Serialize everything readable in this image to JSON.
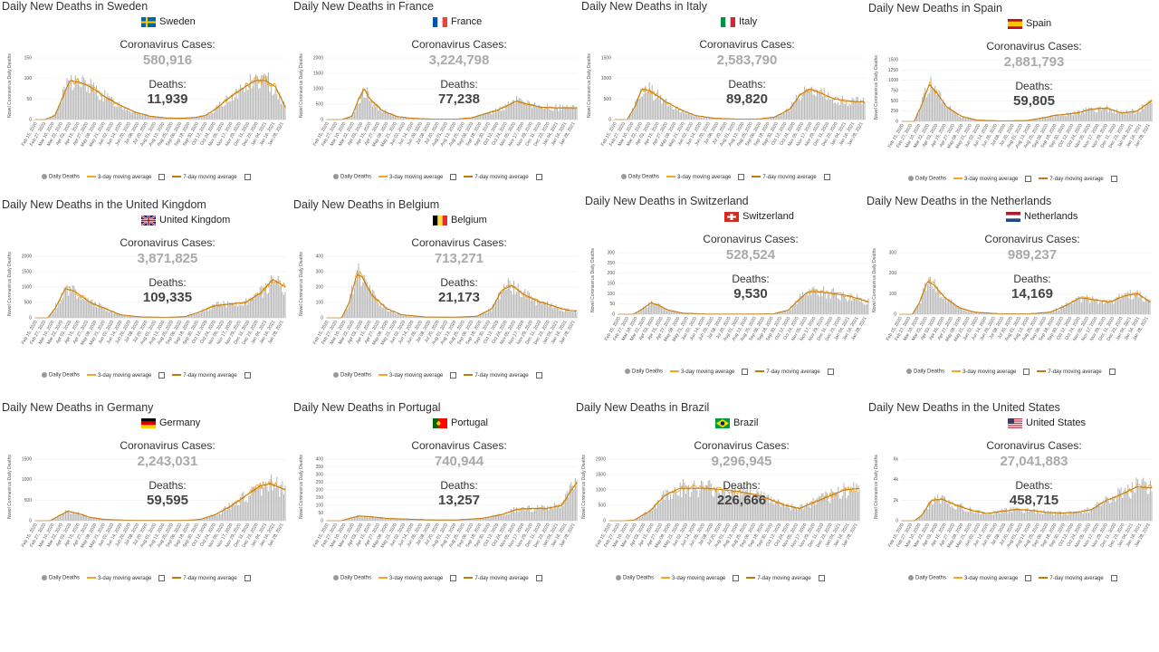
{
  "legend": {
    "daily": "Daily Deaths",
    "ma3": "3-day moving average",
    "ma7": "7-day moving average"
  },
  "axis_ylabel": "Novel Coronavirus Daily Deaths",
  "x_ticks": [
    "Feb 15, 2020",
    "Feb 27, 2020",
    "Mar 10, 2020",
    "Mar 22, 2020",
    "Apr 03, 2020",
    "Apr 15, 2020",
    "Apr 27, 2020",
    "May 09, 2020",
    "May 21, 2020",
    "Jun 02, 2020",
    "Jun 14, 2020",
    "Jun 26, 2020",
    "Jul 08, 2020",
    "Jul 20, 2020",
    "Aug 01, 2020",
    "Aug 13, 2020",
    "Aug 25, 2020",
    "Sep 06, 2020",
    "Sep 18, 2020",
    "Sep 30, 2020",
    "Oct 12, 2020",
    "Oct 24, 2020",
    "Nov 05, 2020",
    "Nov 17, 2020",
    "Nov 29, 2020",
    "Dec 11, 2020",
    "Dec 23, 2020",
    "Jan 04, 2021",
    "Jan 16, 2021",
    "Jan 28, 2021"
  ],
  "colors": {
    "bar": "#b8b8b8",
    "ma3": "#f5a623",
    "ma7": "#c07a10",
    "cases": "#aaaaaa"
  },
  "chart_data": [
    {
      "type": "bar",
      "title": "Daily New Deaths in Sweden",
      "country": "Sweden",
      "flag": "se",
      "cases_label": "Coronavirus Cases:",
      "cases": "580,916",
      "deaths_label": "Deaths:",
      "deaths": "11,939",
      "ylabel": "Novel Coronavirus Daily Deaths",
      "yticks": [
        0,
        50,
        100,
        150
      ],
      "ylim": [
        0,
        150
      ],
      "series_shape": [
        [
          0,
          0
        ],
        [
          0.04,
          0
        ],
        [
          0.08,
          10
        ],
        [
          0.12,
          70
        ],
        [
          0.14,
          95
        ],
        [
          0.18,
          90
        ],
        [
          0.22,
          80
        ],
        [
          0.28,
          55
        ],
        [
          0.34,
          35
        ],
        [
          0.4,
          18
        ],
        [
          0.46,
          8
        ],
        [
          0.52,
          4
        ],
        [
          0.58,
          3
        ],
        [
          0.64,
          5
        ],
        [
          0.68,
          10
        ],
        [
          0.72,
          25
        ],
        [
          0.78,
          55
        ],
        [
          0.84,
          80
        ],
        [
          0.88,
          95
        ],
        [
          0.92,
          95
        ],
        [
          0.96,
          80
        ],
        [
          1.0,
          30
        ]
      ]
    },
    {
      "type": "bar",
      "title": "Daily New Deaths in France",
      "country": "France",
      "flag": "fr",
      "cases_label": "Coronavirus Cases:",
      "cases": "3,224,798",
      "deaths_label": "Deaths:",
      "deaths": "77,238",
      "ylabel": "Novel Coronavirus Daily Deaths",
      "yticks": [
        0,
        500,
        1000,
        1500,
        2000
      ],
      "ylim": [
        0,
        2000
      ],
      "series_shape": [
        [
          0,
          0
        ],
        [
          0.06,
          0
        ],
        [
          0.1,
          100
        ],
        [
          0.13,
          700
        ],
        [
          0.15,
          1000
        ],
        [
          0.17,
          700
        ],
        [
          0.22,
          300
        ],
        [
          0.28,
          100
        ],
        [
          0.34,
          40
        ],
        [
          0.42,
          15
        ],
        [
          0.52,
          15
        ],
        [
          0.58,
          60
        ],
        [
          0.64,
          200
        ],
        [
          0.68,
          300
        ],
        [
          0.72,
          450
        ],
        [
          0.76,
          600
        ],
        [
          0.8,
          500
        ],
        [
          0.86,
          400
        ],
        [
          0.92,
          380
        ],
        [
          1.0,
          380
        ]
      ]
    },
    {
      "type": "bar",
      "title": "Daily New Deaths in Italy",
      "country": "Italy",
      "flag": "it",
      "cases_label": "Coronavirus Cases:",
      "cases": "2,583,790",
      "deaths_label": "Deaths:",
      "deaths": "89,820",
      "ylabel": "Novel Coronavirus Daily Deaths",
      "yticks": [
        0,
        500,
        1000,
        1500
      ],
      "ylim": [
        0,
        1500
      ],
      "series_shape": [
        [
          0,
          0
        ],
        [
          0.05,
          0
        ],
        [
          0.08,
          300
        ],
        [
          0.11,
          750
        ],
        [
          0.14,
          700
        ],
        [
          0.2,
          450
        ],
        [
          0.26,
          250
        ],
        [
          0.32,
          100
        ],
        [
          0.4,
          30
        ],
        [
          0.5,
          10
        ],
        [
          0.58,
          15
        ],
        [
          0.64,
          60
        ],
        [
          0.7,
          250
        ],
        [
          0.74,
          600
        ],
        [
          0.78,
          750
        ],
        [
          0.82,
          650
        ],
        [
          0.88,
          500
        ],
        [
          0.94,
          450
        ],
        [
          1.0,
          420
        ]
      ]
    },
    {
      "type": "bar",
      "title": "Daily New Deaths in Spain",
      "country": "Spain",
      "flag": "es",
      "cases_label": "Coronavirus Cases:",
      "cases": "2,881,793",
      "deaths_label": "Deaths:",
      "deaths": "59,805",
      "ylabel": "Novel Coronavirus Daily Deaths",
      "yticks": [
        0,
        250,
        500,
        750,
        1000,
        1250,
        1500
      ],
      "ylim": [
        0,
        1500
      ],
      "series_shape": [
        [
          0,
          0
        ],
        [
          0.05,
          0
        ],
        [
          0.08,
          400
        ],
        [
          0.11,
          900
        ],
        [
          0.14,
          700
        ],
        [
          0.18,
          350
        ],
        [
          0.24,
          120
        ],
        [
          0.3,
          30
        ],
        [
          0.4,
          10
        ],
        [
          0.5,
          20
        ],
        [
          0.56,
          80
        ],
        [
          0.62,
          150
        ],
        [
          0.7,
          200
        ],
        [
          0.76,
          300
        ],
        [
          0.82,
          320
        ],
        [
          0.88,
          200
        ],
        [
          0.94,
          250
        ],
        [
          1.0,
          500
        ]
      ]
    },
    {
      "type": "bar",
      "title": "Daily New Deaths in the United Kingdom",
      "country": "United Kingdom",
      "flag": "gb",
      "cases_label": "Coronavirus Cases:",
      "cases": "3,871,825",
      "deaths_label": "Deaths:",
      "deaths": "109,335",
      "ylabel": "Novel Coronavirus Daily Deaths",
      "yticks": [
        0,
        500,
        1000,
        1500,
        2000
      ],
      "ylim": [
        0,
        2000
      ],
      "series_shape": [
        [
          0,
          0
        ],
        [
          0.05,
          0
        ],
        [
          0.08,
          300
        ],
        [
          0.12,
          950
        ],
        [
          0.16,
          850
        ],
        [
          0.22,
          500
        ],
        [
          0.28,
          300
        ],
        [
          0.34,
          100
        ],
        [
          0.42,
          30
        ],
        [
          0.52,
          15
        ],
        [
          0.6,
          40
        ],
        [
          0.66,
          200
        ],
        [
          0.72,
          400
        ],
        [
          0.78,
          450
        ],
        [
          0.84,
          500
        ],
        [
          0.9,
          800
        ],
        [
          0.95,
          1250
        ],
        [
          1.0,
          1000
        ]
      ]
    },
    {
      "type": "bar",
      "title": "Daily New Deaths in Belgium",
      "country": "Belgium",
      "flag": "be",
      "cases_label": "Coronavirus Cases:",
      "cases": "713,271",
      "deaths_label": "Deaths:",
      "deaths": "21,173",
      "ylabel": "Novel Coronavirus Daily Deaths",
      "yticks": [
        0,
        100,
        200,
        300,
        400
      ],
      "ylim": [
        0,
        400
      ],
      "series_shape": [
        [
          0,
          0
        ],
        [
          0.06,
          0
        ],
        [
          0.09,
          100
        ],
        [
          0.12,
          280
        ],
        [
          0.14,
          270
        ],
        [
          0.18,
          150
        ],
        [
          0.24,
          60
        ],
        [
          0.3,
          20
        ],
        [
          0.4,
          5
        ],
        [
          0.52,
          5
        ],
        [
          0.6,
          10
        ],
        [
          0.66,
          60
        ],
        [
          0.7,
          180
        ],
        [
          0.74,
          210
        ],
        [
          0.78,
          160
        ],
        [
          0.84,
          110
        ],
        [
          0.9,
          80
        ],
        [
          0.96,
          50
        ],
        [
          1.0,
          45
        ]
      ]
    },
    {
      "type": "bar",
      "title": "Daily New Deaths in Switzerland",
      "country": "Switzerland",
      "flag": "ch",
      "cases_label": "Coronavirus Cases:",
      "cases": "528,524",
      "deaths_label": "Deaths:",
      "deaths": "9,530",
      "ylabel": "Novel Coronavirus Daily Deaths",
      "yticks": [
        0,
        50,
        100,
        150,
        200,
        250,
        300
      ],
      "ylim": [
        0,
        300
      ],
      "series_shape": [
        [
          0,
          0
        ],
        [
          0.06,
          0
        ],
        [
          0.09,
          20
        ],
        [
          0.13,
          55
        ],
        [
          0.16,
          45
        ],
        [
          0.2,
          20
        ],
        [
          0.26,
          5
        ],
        [
          0.36,
          1
        ],
        [
          0.5,
          1
        ],
        [
          0.62,
          2
        ],
        [
          0.68,
          20
        ],
        [
          0.72,
          70
        ],
        [
          0.76,
          110
        ],
        [
          0.8,
          110
        ],
        [
          0.86,
          100
        ],
        [
          0.92,
          90
        ],
        [
          1.0,
          60
        ]
      ]
    },
    {
      "type": "bar",
      "title": "Daily New Deaths in the Netherlands",
      "country": "Netherlands",
      "flag": "nl",
      "cases_label": "Coronavirus Cases:",
      "cases": "989,237",
      "deaths_label": "Deaths:",
      "deaths": "14,169",
      "ylabel": "Novel Coronavirus Daily Deaths",
      "yticks": [
        0,
        100,
        200,
        300
      ],
      "ylim": [
        0,
        300
      ],
      "series_shape": [
        [
          0,
          0
        ],
        [
          0.05,
          0
        ],
        [
          0.08,
          60
        ],
        [
          0.11,
          160
        ],
        [
          0.14,
          140
        ],
        [
          0.18,
          80
        ],
        [
          0.24,
          30
        ],
        [
          0.3,
          10
        ],
        [
          0.4,
          2
        ],
        [
          0.52,
          2
        ],
        [
          0.6,
          10
        ],
        [
          0.66,
          40
        ],
        [
          0.72,
          80
        ],
        [
          0.78,
          70
        ],
        [
          0.84,
          60
        ],
        [
          0.9,
          90
        ],
        [
          0.95,
          100
        ],
        [
          1.0,
          60
        ]
      ]
    },
    {
      "type": "bar",
      "title": "Daily New Deaths in Germany",
      "country": "Germany",
      "flag": "de",
      "cases_label": "Coronavirus Cases:",
      "cases": "2,243,031",
      "deaths_label": "Deaths:",
      "deaths": "59,595",
      "ylabel": "Novel Coronavirus Daily Deaths",
      "yticks": [
        0,
        500,
        1000,
        1500
      ],
      "ylim": [
        0,
        1500
      ],
      "series_shape": [
        [
          0,
          0
        ],
        [
          0.06,
          0
        ],
        [
          0.09,
          100
        ],
        [
          0.13,
          230
        ],
        [
          0.17,
          180
        ],
        [
          0.22,
          80
        ],
        [
          0.28,
          30
        ],
        [
          0.38,
          8
        ],
        [
          0.5,
          5
        ],
        [
          0.6,
          8
        ],
        [
          0.66,
          30
        ],
        [
          0.72,
          150
        ],
        [
          0.78,
          350
        ],
        [
          0.84,
          600
        ],
        [
          0.9,
          850
        ],
        [
          0.94,
          900
        ],
        [
          1.0,
          750
        ]
      ]
    },
    {
      "type": "bar",
      "title": "Daily New Deaths in Portugal",
      "country": "Portugal",
      "flag": "pt",
      "cases_label": "Coronavirus Cases:",
      "cases": "740,944",
      "deaths_label": "Deaths:",
      "deaths": "13,257",
      "ylabel": "Novel Coronavirus Daily Deaths",
      "yticks": [
        0,
        50,
        100,
        150,
        200,
        250,
        300,
        350,
        400
      ],
      "ylim": [
        0,
        400
      ],
      "series_shape": [
        [
          0,
          0
        ],
        [
          0.06,
          0
        ],
        [
          0.09,
          15
        ],
        [
          0.13,
          30
        ],
        [
          0.18,
          25
        ],
        [
          0.24,
          15
        ],
        [
          0.32,
          10
        ],
        [
          0.42,
          5
        ],
        [
          0.52,
          5
        ],
        [
          0.62,
          15
        ],
        [
          0.7,
          40
        ],
        [
          0.76,
          75
        ],
        [
          0.82,
          80
        ],
        [
          0.88,
          80
        ],
        [
          0.94,
          100
        ],
        [
          0.97,
          180
        ],
        [
          1.0,
          250
        ]
      ]
    },
    {
      "type": "bar",
      "title": "Daily New Deaths in Brazil",
      "country": "Brazil",
      "flag": "br",
      "cases_label": "Coronavirus Cases:",
      "cases": "9,296,945",
      "deaths_label": "Deaths:",
      "deaths": "226,666",
      "ylabel": "Novel Coronavirus Daily Deaths",
      "yticks": [
        0,
        500,
        1000,
        1500,
        2000
      ],
      "ylim": [
        0,
        2000
      ],
      "series_shape": [
        [
          0,
          0
        ],
        [
          0.06,
          0
        ],
        [
          0.1,
          20
        ],
        [
          0.16,
          300
        ],
        [
          0.22,
          800
        ],
        [
          0.28,
          1050
        ],
        [
          0.34,
          1050
        ],
        [
          0.4,
          1050
        ],
        [
          0.46,
          1000
        ],
        [
          0.52,
          950
        ],
        [
          0.58,
          850
        ],
        [
          0.64,
          700
        ],
        [
          0.7,
          500
        ],
        [
          0.76,
          400
        ],
        [
          0.82,
          600
        ],
        [
          0.88,
          800
        ],
        [
          0.94,
          1000
        ],
        [
          1.0,
          1050
        ]
      ]
    },
    {
      "type": "bar",
      "title": "Daily New Deaths in the United States",
      "country": "United States",
      "flag": "us",
      "cases_label": "Coronavirus Cases:",
      "cases": "27,041,883",
      "deaths_label": "Deaths:",
      "deaths": "458,715",
      "ylabel": "Novel Coronavirus Daily Deaths",
      "yticks": [
        "0",
        "2k",
        "4k",
        "6k"
      ],
      "ylim": [
        0,
        6000
      ],
      "series_shape": [
        [
          0,
          0
        ],
        [
          0.05,
          0
        ],
        [
          0.08,
          500
        ],
        [
          0.12,
          2000
        ],
        [
          0.16,
          2100
        ],
        [
          0.22,
          1500
        ],
        [
          0.28,
          1000
        ],
        [
          0.34,
          700
        ],
        [
          0.4,
          900
        ],
        [
          0.46,
          1100
        ],
        [
          0.52,
          1000
        ],
        [
          0.58,
          800
        ],
        [
          0.64,
          750
        ],
        [
          0.7,
          800
        ],
        [
          0.76,
          1100
        ],
        [
          0.82,
          2000
        ],
        [
          0.88,
          2600
        ],
        [
          0.94,
          3300
        ],
        [
          1.0,
          3200
        ]
      ]
    }
  ]
}
